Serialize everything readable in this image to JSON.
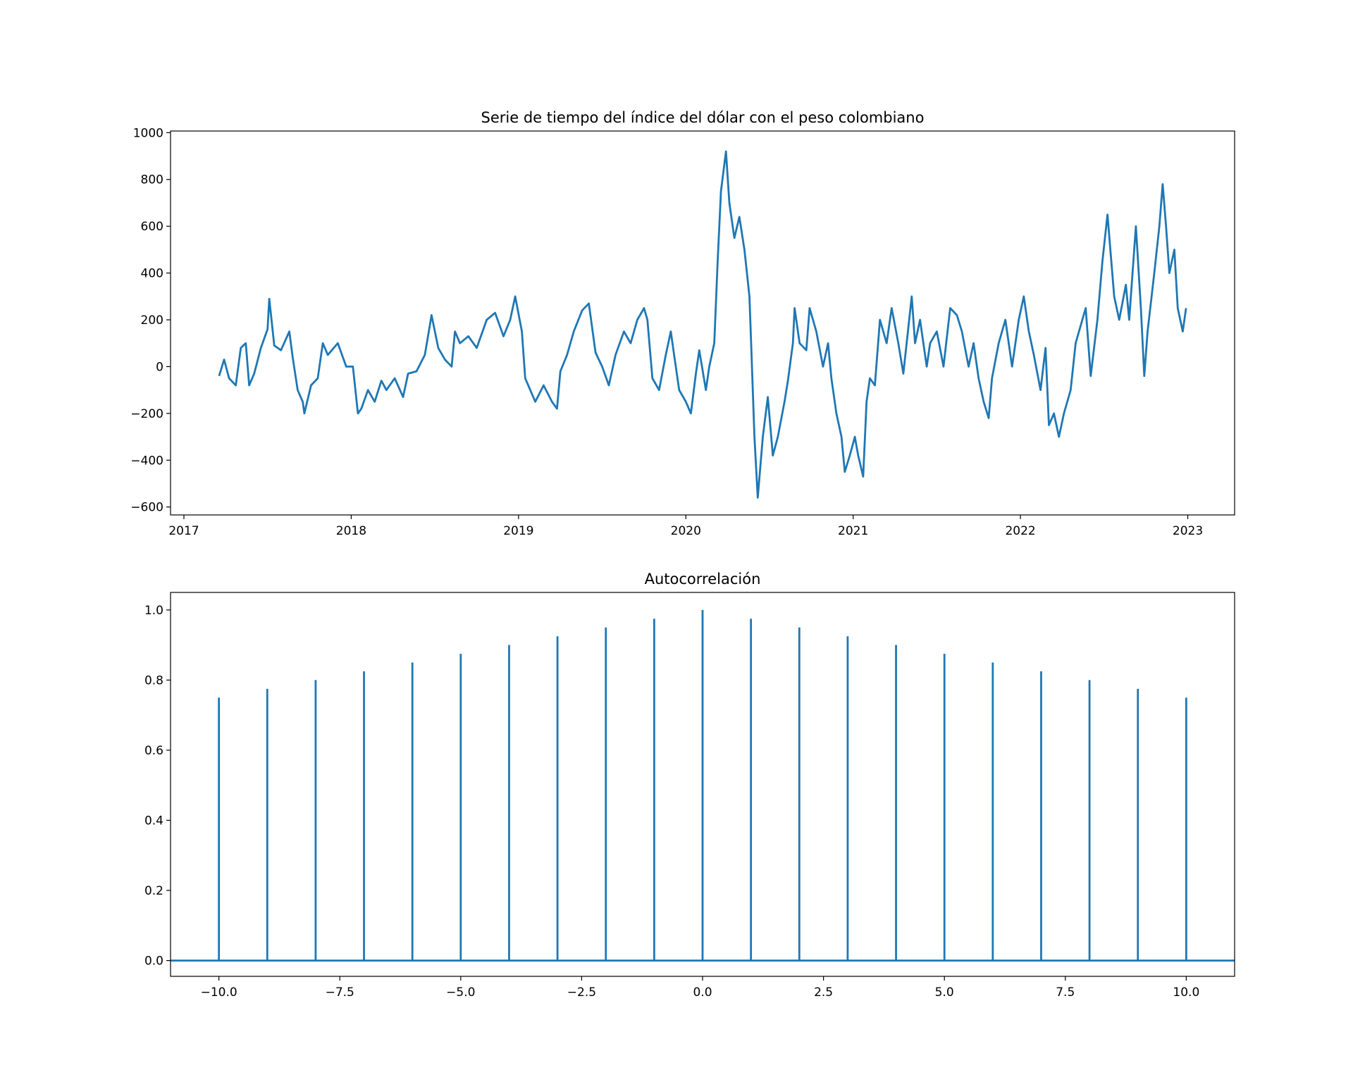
{
  "chart_data": [
    {
      "type": "line",
      "title": "Serie de tiempo del índice del dólar con el peso colombiano",
      "color": "#1f77b4",
      "x": [
        2017.21,
        2017.24,
        2017.27,
        2017.31,
        2017.34,
        2017.37,
        2017.39,
        2017.42,
        2017.46,
        2017.5,
        2017.51,
        2017.54,
        2017.58,
        2017.63,
        2017.65,
        2017.68,
        2017.71,
        2017.72,
        2017.76,
        2017.8,
        2017.83,
        2017.86,
        2017.92,
        2017.97,
        2018.01,
        2018.04,
        2018.06,
        2018.1,
        2018.14,
        2018.18,
        2018.21,
        2018.26,
        2018.31,
        2018.34,
        2018.39,
        2018.44,
        2018.48,
        2018.52,
        2018.56,
        2018.6,
        2018.62,
        2018.65,
        2018.7,
        2018.75,
        2018.81,
        2018.86,
        2018.91,
        2018.95,
        2018.98,
        2019.02,
        2019.04,
        2019.07,
        2019.1,
        2019.15,
        2019.2,
        2019.23,
        2019.25,
        2019.29,
        2019.33,
        2019.38,
        2019.42,
        2019.46,
        2019.5,
        2019.54,
        2019.58,
        2019.63,
        2019.67,
        2019.71,
        2019.75,
        2019.77,
        2019.8,
        2019.84,
        2019.88,
        2019.91,
        2019.93,
        2019.96,
        2020.0,
        2020.03,
        2020.06,
        2020.08,
        2020.12,
        2020.14,
        2020.17,
        2020.19,
        2020.21,
        2020.24,
        2020.26,
        2020.29,
        2020.32,
        2020.35,
        2020.38,
        2020.39,
        2020.41,
        2020.43,
        2020.46,
        2020.49,
        2020.52,
        2020.55,
        2020.59,
        2020.61,
        2020.64,
        2020.65,
        2020.68,
        2020.72,
        2020.74,
        2020.78,
        2020.82,
        2020.85,
        2020.87,
        2020.9,
        2020.93,
        2020.95,
        2020.98,
        2021.01,
        2021.03,
        2021.06,
        2021.08,
        2021.1,
        2021.13,
        2021.16,
        2021.2,
        2021.23,
        2021.27,
        2021.3,
        2021.35,
        2021.37,
        2021.4,
        2021.44,
        2021.46,
        2021.5,
        2021.54,
        2021.58,
        2021.62,
        2021.65,
        2021.69,
        2021.72,
        2021.75,
        2021.78,
        2021.81,
        2021.83,
        2021.87,
        2021.91,
        2021.95,
        2021.99,
        2022.02,
        2022.05,
        2022.08,
        2022.12,
        2022.15,
        2022.17,
        2022.2,
        2022.23,
        2022.26,
        2022.3,
        2022.33,
        2022.37,
        2022.39,
        2022.42,
        2022.46,
        2022.49,
        2022.52,
        2022.56,
        2022.59,
        2022.63,
        2022.65,
        2022.69,
        2022.72,
        2022.74,
        2022.76,
        2022.8,
        2022.83,
        2022.85,
        2022.87,
        2022.89,
        2022.92,
        2022.94,
        2022.97,
        2022.99
      ],
      "values": [
        -40,
        30,
        -50,
        -80,
        80,
        100,
        -80,
        -30,
        80,
        160,
        290,
        90,
        70,
        150,
        40,
        -100,
        -150,
        -200,
        -80,
        -50,
        100,
        50,
        100,
        0,
        0,
        -200,
        -180,
        -100,
        -150,
        -60,
        -100,
        -50,
        -130,
        -30,
        -20,
        50,
        220,
        80,
        30,
        0,
        150,
        100,
        130,
        80,
        200,
        230,
        130,
        200,
        300,
        150,
        -50,
        -100,
        -150,
        -80,
        -150,
        -180,
        -20,
        50,
        150,
        240,
        270,
        60,
        0,
        -80,
        50,
        150,
        100,
        200,
        250,
        200,
        -50,
        -100,
        50,
        150,
        50,
        -100,
        -150,
        -200,
        -30,
        70,
        -100,
        0,
        100,
        450,
        750,
        920,
        700,
        550,
        640,
        500,
        300,
        100,
        -300,
        -560,
        -300,
        -130,
        -380,
        -300,
        -150,
        -60,
        100,
        250,
        100,
        70,
        250,
        150,
        0,
        100,
        -50,
        -200,
        -300,
        -450,
        -380,
        -300,
        -380,
        -470,
        -150,
        -50,
        -80,
        200,
        100,
        250,
        100,
        -30,
        300,
        100,
        200,
        0,
        100,
        150,
        0,
        250,
        220,
        150,
        0,
        100,
        -50,
        -150,
        -220,
        -50,
        100,
        200,
        0,
        200,
        300,
        150,
        50,
        -100,
        80,
        -250,
        -200,
        -300,
        -200,
        -100,
        100,
        200,
        250,
        -40,
        200,
        450,
        650,
        300,
        200,
        350,
        200,
        600,
        250,
        -40,
        150,
        400,
        600,
        780,
        600,
        400,
        500,
        250,
        150,
        250
      ],
      "xlim": [
        2016.92,
        2023.28
      ],
      "xticks": [
        2017,
        2018,
        2019,
        2020,
        2021,
        2022,
        2023
      ],
      "ylim": [
        -634,
        1007
      ],
      "yticks": [
        {
          "value": -600,
          "label": "−600"
        },
        {
          "value": -400,
          "label": "−400"
        },
        {
          "value": -200,
          "label": "−200"
        },
        0,
        200,
        400,
        600,
        800,
        1000
      ]
    },
    {
      "type": "stem",
      "title": "Autocorrelación",
      "color": "#1f77b4",
      "x": [
        -10,
        -9,
        -8,
        -7,
        -6,
        -5,
        -4,
        -3,
        -2,
        -1,
        0,
        1,
        2,
        3,
        4,
        5,
        6,
        7,
        8,
        9,
        10
      ],
      "values": [
        0.75,
        0.775,
        0.8,
        0.825,
        0.85,
        0.875,
        0.9,
        0.925,
        0.95,
        0.975,
        1.0,
        0.975,
        0.95,
        0.925,
        0.9,
        0.875,
        0.85,
        0.825,
        0.8,
        0.775,
        0.75
      ],
      "xlim": [
        -11,
        11
      ],
      "xticks": [
        {
          "value": -10,
          "label": "−10.0"
        },
        {
          "value": -7.5,
          "label": "−7.5"
        },
        {
          "value": -5,
          "label": "−5.0"
        },
        {
          "value": -2.5,
          "label": "−2.5"
        },
        {
          "value": 0,
          "label": "0.0"
        },
        {
          "value": 2.5,
          "label": "2.5"
        },
        {
          "value": 5,
          "label": "5.0"
        },
        {
          "value": 7.5,
          "label": "7.5"
        },
        {
          "value": 10,
          "label": "10.0"
        }
      ],
      "ylim": [
        -0.045,
        1.05
      ],
      "yticks": [
        {
          "value": 0,
          "label": "0.0"
        },
        {
          "value": 0.2,
          "label": "0.2"
        },
        {
          "value": 0.4,
          "label": "0.4"
        },
        {
          "value": 0.6,
          "label": "0.6"
        },
        {
          "value": 0.8,
          "label": "0.8"
        },
        {
          "value": 1,
          "label": "1.0"
        }
      ]
    }
  ]
}
